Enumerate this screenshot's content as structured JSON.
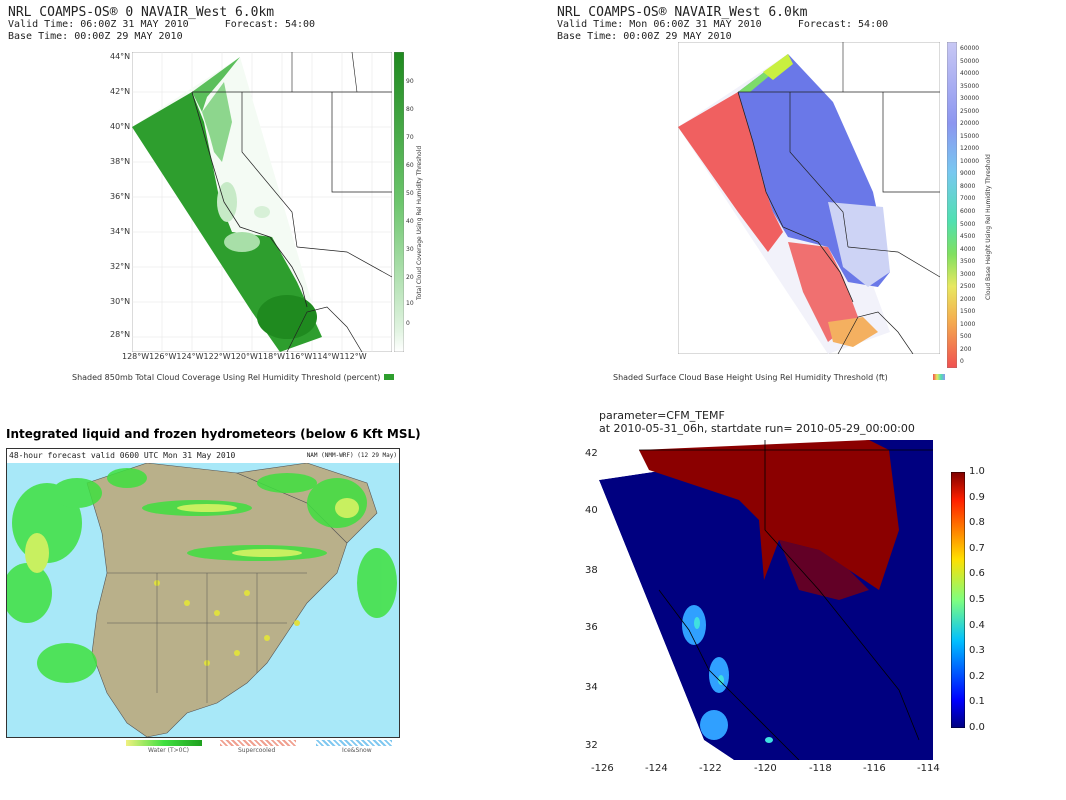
{
  "panel_tl": {
    "header_line1": "NRL COAMPS-OS® 0 NAVAIR_West 6.0km",
    "header_line2": "Valid Time: 06:00Z 31 MAY 2010      Forecast: 54:00",
    "header_line3": "Base Time: 00:00Z 29 MAY 2010",
    "lat_labels": [
      "44°N",
      "42°N",
      "40°N",
      "38°N",
      "36°N",
      "34°N",
      "32°N",
      "30°N",
      "28°N"
    ],
    "lon_labels": "128°W126°W124°W122°W120°W118°W116°W114°W112°W",
    "colorbar_ticks": [
      "90",
      "80",
      "70",
      "60",
      "50",
      "40",
      "30",
      "20",
      "10",
      "0"
    ],
    "colorbar_label": "Total Cloud Coverage Using Rel Humidity Threshold",
    "caption": "Shaded 850mb Total Cloud Coverage Using Rel Humidity Threshold (percent)",
    "accent": "#2e9e2e"
  },
  "panel_tr": {
    "header_line1": "NRL COAMPS-OS® NAVAIR_West 6.0km",
    "header_line2": "Valid Time: Mon 06:00Z 31 MAY 2010      Forecast: 54:00",
    "header_line3": "Base Time: 00:00Z 29 MAY 2010",
    "colorbar_ticks": [
      "60000",
      "50000",
      "40000",
      "35000",
      "30000",
      "25000",
      "20000",
      "15000",
      "12000",
      "10000",
      "9000",
      "8000",
      "7000",
      "6000",
      "5000",
      "4500",
      "4000",
      "3500",
      "3000",
      "2500",
      "2000",
      "1500",
      "1000",
      "500",
      "200",
      "0"
    ],
    "colorbar_label": "Cloud Base Height Using Rel Humidity Threshold",
    "caption": "Shaded Surface Cloud Base Height Using Rel Humidity Threshold (ft)"
  },
  "panel_bl": {
    "title": "Integrated liquid and frozen hydrometeors (below 6 Kft MSL)",
    "subheader": "48-hour forecast valid 0600 UTC Mon 31 May 2010",
    "subheader_right": "NAM (NMM-WRF) (12 29 May)",
    "legend": [
      "Water (T>0C)",
      "Supercooled",
      "Ice&Snow"
    ]
  },
  "panel_br": {
    "title_line1": "parameter=CFM_TEMF",
    "title_line2": "at 2010-05-31_06h, startdate run= 2010-05-29_00:00:00",
    "y_ticks": [
      "42",
      "40",
      "38",
      "36",
      "34",
      "32"
    ],
    "x_ticks": [
      "-126",
      "-124",
      "-122",
      "-120",
      "-118",
      "-116",
      "-114"
    ],
    "colorbar_ticks": [
      "1.0",
      "0.9",
      "0.8",
      "0.7",
      "0.6",
      "0.5",
      "0.4",
      "0.3",
      "0.2",
      "0.1",
      "0.0"
    ]
  }
}
